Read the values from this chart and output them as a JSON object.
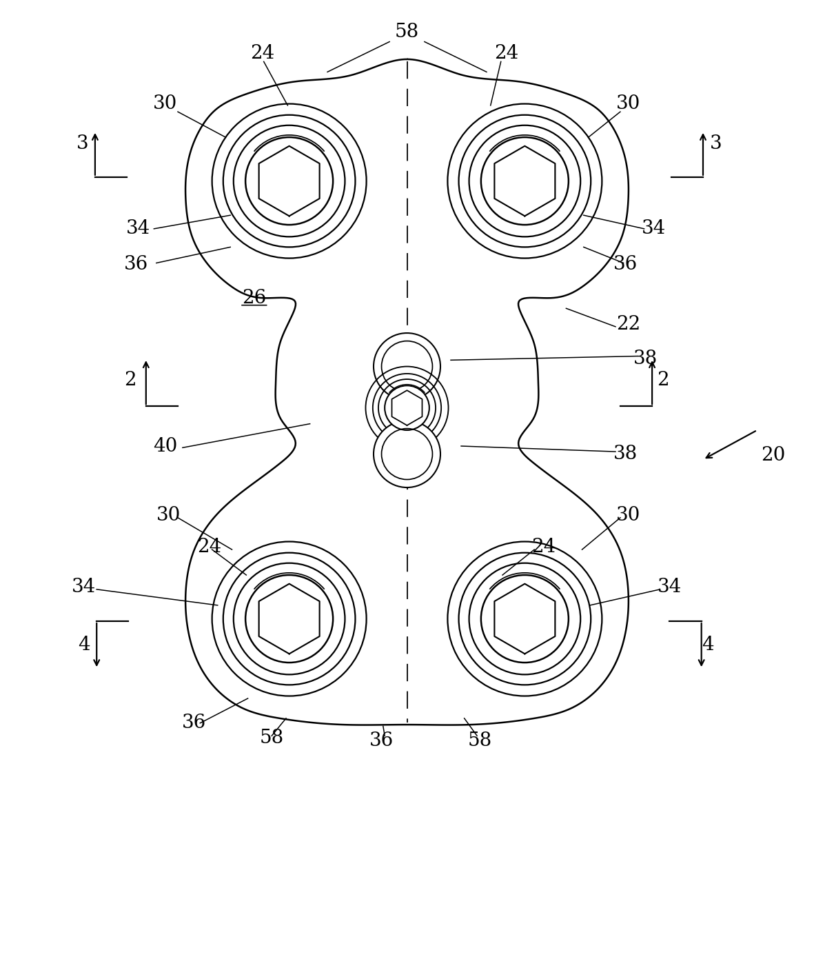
{
  "bg_color": "#ffffff",
  "line_color": "#000000",
  "fig_width": 11.81,
  "fig_height": 13.91,
  "dpi": 100
}
